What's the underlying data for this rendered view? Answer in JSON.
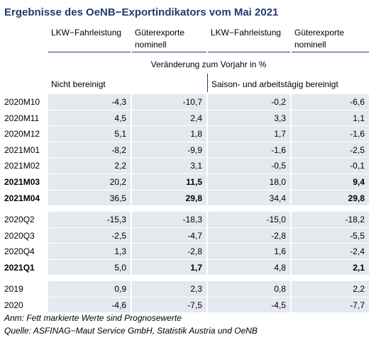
{
  "header": {
    "title": "Ergebnisse des OeNB−Exportindikators vom Mai 2021"
  },
  "table": {
    "columns": [
      "LKW−Fahrleistung",
      "Güterexporte nominell",
      "LKW−Fahrleistung",
      "Güterexporte nominell"
    ],
    "unit_note": "Veränderung zum Vorjahr in %",
    "column_groups": [
      "Nicht bereinigt",
      "Saison- und arbeitstägig bereinigt"
    ],
    "bold_columns": [
      1,
      3
    ],
    "groups": [
      {
        "rows": [
          {
            "label": "2020M10",
            "values": [
              "-4,3",
              "-10,7",
              "-0,2",
              "-6,6"
            ]
          },
          {
            "label": "2020M11",
            "values": [
              "4,5",
              "2,4",
              "3,3",
              "1,1"
            ]
          },
          {
            "label": "2020M12",
            "values": [
              "5,1",
              "1,8",
              "1,7",
              "-1,6"
            ]
          },
          {
            "label": "2021M01",
            "values": [
              "-8,2",
              "-9,9",
              "-1,6",
              "-2,5"
            ]
          },
          {
            "label": "2021M02",
            "values": [
              "2,2",
              "3,1",
              "-0,5",
              "-0,1"
            ]
          },
          {
            "label": "2021M03",
            "values": [
              "20,2",
              "11,5",
              "18,0",
              "9,4"
            ],
            "bold": true
          },
          {
            "label": "2021M04",
            "values": [
              "36,5",
              "29,8",
              "34,4",
              "29,8"
            ],
            "bold": true
          }
        ]
      },
      {
        "rows": [
          {
            "label": "2020Q2",
            "values": [
              "-15,3",
              "-18,3",
              "-15,0",
              "-18,2"
            ]
          },
          {
            "label": "2020Q3",
            "values": [
              "-2,5",
              "-4,7",
              "-2,8",
              "-5,5"
            ]
          },
          {
            "label": "2020Q4",
            "values": [
              "1,3",
              "-2,8",
              "1,6",
              "-2,4"
            ]
          },
          {
            "label": "2021Q1",
            "values": [
              "5,0",
              "1,7",
              "4,8",
              "2,1"
            ],
            "bold": true
          }
        ]
      },
      {
        "rows": [
          {
            "label": "2019",
            "values": [
              "0,9",
              "2,3",
              "0,8",
              "2,2"
            ]
          },
          {
            "label": "2020",
            "values": [
              "-4,6",
              "-7,5",
              "-4,5",
              "-7,7"
            ]
          }
        ]
      }
    ]
  },
  "notes": [
    "Anm: Fett markierte Werte sind Prognosewerte",
    "Quelle: ASFINAG−Maut Service GmbH, Statistik Austria und OeNB"
  ]
}
